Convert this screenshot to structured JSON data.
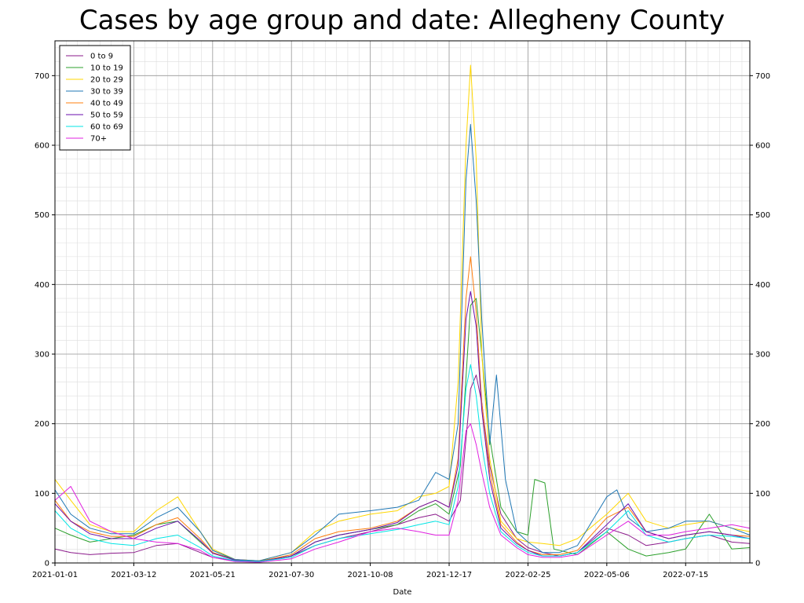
{
  "chart_data": {
    "type": "line",
    "title": "Cases by age group and date: Allegheny County",
    "xlabel": "Date",
    "ylabel": "",
    "x_ticks": [
      "2021-01-01",
      "2021-03-12",
      "2021-05-21",
      "2021-07-30",
      "2021-10-08",
      "2021-12-17",
      "2022-02-25",
      "2022-05-06",
      "2022-07-15"
    ],
    "xlim": [
      "2021-01-01",
      "2022-09-10"
    ],
    "ylim": [
      0,
      750
    ],
    "y_ticks": [
      0,
      100,
      200,
      300,
      400,
      500,
      600,
      700
    ],
    "grid": true,
    "legend_position": "top-left",
    "series": [
      {
        "name": "0 to 9",
        "color": "#8b1a8b",
        "dates": [
          "2021-01-01",
          "2021-01-15",
          "2021-02-01",
          "2021-02-20",
          "2021-03-12",
          "2021-04-01",
          "2021-04-20",
          "2021-05-10",
          "2021-05-21",
          "2021-06-10",
          "2021-07-01",
          "2021-07-30",
          "2021-08-20",
          "2021-09-10",
          "2021-10-08",
          "2021-11-01",
          "2021-11-20",
          "2021-12-05",
          "2021-12-17",
          "2021-12-27",
          "2022-01-05",
          "2022-01-10",
          "2022-01-15",
          "2022-01-22",
          "2022-02-01",
          "2022-02-15",
          "2022-02-25",
          "2022-03-10",
          "2022-03-25",
          "2022-04-10",
          "2022-05-06",
          "2022-05-25",
          "2022-06-10",
          "2022-06-30",
          "2022-07-15",
          "2022-08-05",
          "2022-08-25",
          "2022-09-10"
        ],
        "values": [
          20,
          15,
          12,
          14,
          15,
          25,
          28,
          15,
          8,
          3,
          2,
          10,
          25,
          35,
          45,
          55,
          65,
          70,
          60,
          90,
          250,
          270,
          230,
          140,
          70,
          35,
          22,
          15,
          10,
          15,
          50,
          40,
          25,
          30,
          35,
          40,
          30,
          28
        ]
      },
      {
        "name": "10 to 19",
        "color": "#2ca02c",
        "dates": [
          "2021-01-01",
          "2021-01-15",
          "2021-02-01",
          "2021-02-20",
          "2021-03-12",
          "2021-04-01",
          "2021-04-20",
          "2021-05-10",
          "2021-05-21",
          "2021-06-10",
          "2021-07-01",
          "2021-07-30",
          "2021-08-20",
          "2021-09-10",
          "2021-10-08",
          "2021-11-01",
          "2021-11-20",
          "2021-12-05",
          "2021-12-17",
          "2021-12-27",
          "2022-01-05",
          "2022-01-10",
          "2022-01-15",
          "2022-01-22",
          "2022-02-01",
          "2022-02-15",
          "2022-02-25",
          "2022-03-03",
          "2022-03-12",
          "2022-03-20",
          "2022-04-10",
          "2022-05-06",
          "2022-05-25",
          "2022-06-10",
          "2022-06-30",
          "2022-07-15",
          "2022-08-05",
          "2022-08-25",
          "2022-09-10"
        ],
        "values": [
          50,
          40,
          30,
          35,
          40,
          55,
          60,
          30,
          15,
          5,
          3,
          10,
          30,
          40,
          48,
          55,
          75,
          85,
          70,
          140,
          370,
          380,
          300,
          180,
          80,
          45,
          40,
          120,
          115,
          20,
          12,
          45,
          20,
          10,
          15,
          20,
          70,
          20,
          22
        ]
      },
      {
        "name": "20 to 29",
        "color": "#ffd700",
        "dates": [
          "2021-01-01",
          "2021-01-15",
          "2021-02-01",
          "2021-02-20",
          "2021-03-12",
          "2021-04-01",
          "2021-04-20",
          "2021-05-10",
          "2021-05-21",
          "2021-06-10",
          "2021-07-01",
          "2021-07-30",
          "2021-08-20",
          "2021-09-10",
          "2021-10-08",
          "2021-11-01",
          "2021-11-20",
          "2021-12-05",
          "2021-12-17",
          "2021-12-25",
          "2022-01-01",
          "2022-01-05",
          "2022-01-10",
          "2022-01-15",
          "2022-01-22",
          "2022-02-01",
          "2022-02-15",
          "2022-02-25",
          "2022-03-10",
          "2022-03-25",
          "2022-04-10",
          "2022-05-06",
          "2022-05-25",
          "2022-06-10",
          "2022-06-30",
          "2022-07-15",
          "2022-08-05",
          "2022-08-25",
          "2022-09-10"
        ],
        "values": [
          120,
          90,
          55,
          45,
          45,
          75,
          95,
          45,
          20,
          5,
          3,
          15,
          45,
          60,
          70,
          75,
          95,
          100,
          110,
          260,
          600,
          715,
          580,
          300,
          150,
          60,
          35,
          30,
          28,
          25,
          35,
          70,
          100,
          60,
          50,
          55,
          60,
          50,
          45
        ]
      },
      {
        "name": "30 to 39",
        "color": "#1f77b4",
        "dates": [
          "2021-01-01",
          "2021-01-15",
          "2021-02-01",
          "2021-02-20",
          "2021-03-12",
          "2021-04-01",
          "2021-04-20",
          "2021-05-10",
          "2021-05-21",
          "2021-06-10",
          "2021-07-01",
          "2021-07-30",
          "2021-08-20",
          "2021-09-10",
          "2021-10-08",
          "2021-11-01",
          "2021-11-20",
          "2021-12-05",
          "2021-12-17",
          "2021-12-25",
          "2022-01-01",
          "2022-01-05",
          "2022-01-10",
          "2022-01-15",
          "2022-01-22",
          "2022-01-28",
          "2022-02-05",
          "2022-02-15",
          "2022-02-25",
          "2022-03-10",
          "2022-03-25",
          "2022-04-10",
          "2022-05-06",
          "2022-05-15",
          "2022-05-25",
          "2022-06-10",
          "2022-06-30",
          "2022-07-15",
          "2022-08-05",
          "2022-08-25",
          "2022-09-10"
        ],
        "values": [
          105,
          70,
          50,
          42,
          42,
          65,
          80,
          45,
          18,
          5,
          3,
          15,
          40,
          70,
          75,
          80,
          90,
          130,
          120,
          200,
          550,
          630,
          520,
          350,
          170,
          270,
          120,
          45,
          30,
          15,
          15,
          25,
          95,
          105,
          65,
          45,
          50,
          60,
          60,
          50,
          40
        ]
      },
      {
        "name": "40 to 49",
        "color": "#ff7f0e",
        "dates": [
          "2021-01-01",
          "2021-01-15",
          "2021-02-01",
          "2021-02-20",
          "2021-03-12",
          "2021-04-01",
          "2021-04-20",
          "2021-05-10",
          "2021-05-21",
          "2021-06-10",
          "2021-07-01",
          "2021-07-30",
          "2021-08-20",
          "2021-09-10",
          "2021-10-08",
          "2021-11-01",
          "2021-11-20",
          "2021-12-05",
          "2021-12-17",
          "2021-12-25",
          "2022-01-01",
          "2022-01-05",
          "2022-01-10",
          "2022-01-15",
          "2022-01-22",
          "2022-02-01",
          "2022-02-15",
          "2022-02-25",
          "2022-03-10",
          "2022-03-25",
          "2022-04-10",
          "2022-05-06",
          "2022-05-25",
          "2022-06-10",
          "2022-06-30",
          "2022-07-15",
          "2022-08-05",
          "2022-08-25",
          "2022-09-10"
        ],
        "values": [
          90,
          60,
          45,
          38,
          38,
          55,
          65,
          35,
          15,
          4,
          2,
          12,
          35,
          45,
          50,
          60,
          80,
          90,
          80,
          150,
          380,
          440,
          360,
          230,
          130,
          55,
          30,
          18,
          12,
          12,
          18,
          65,
          80,
          45,
          35,
          40,
          45,
          40,
          38
        ]
      },
      {
        "name": "50 to 59",
        "color": "#6a0dad",
        "dates": [
          "2021-01-01",
          "2021-01-15",
          "2021-02-01",
          "2021-02-20",
          "2021-03-12",
          "2021-04-01",
          "2021-04-20",
          "2021-05-10",
          "2021-05-21",
          "2021-06-10",
          "2021-07-01",
          "2021-07-30",
          "2021-08-20",
          "2021-09-10",
          "2021-10-08",
          "2021-11-01",
          "2021-11-20",
          "2021-12-05",
          "2021-12-17",
          "2021-12-25",
          "2022-01-01",
          "2022-01-05",
          "2022-01-10",
          "2022-01-15",
          "2022-01-22",
          "2022-02-01",
          "2022-02-15",
          "2022-02-25",
          "2022-03-10",
          "2022-03-25",
          "2022-04-10",
          "2022-05-06",
          "2022-05-25",
          "2022-06-10",
          "2022-06-30",
          "2022-07-15",
          "2022-08-05",
          "2022-08-25",
          "2022-09-10"
        ],
        "values": [
          85,
          60,
          42,
          35,
          35,
          50,
          60,
          32,
          14,
          4,
          2,
          10,
          30,
          40,
          48,
          58,
          80,
          90,
          80,
          140,
          350,
          390,
          340,
          220,
          120,
          50,
          28,
          18,
          10,
          10,
          15,
          55,
          85,
          45,
          35,
          40,
          45,
          40,
          35
        ]
      },
      {
        "name": "60 to 69",
        "color": "#00e5e5",
        "dates": [
          "2021-01-01",
          "2021-01-15",
          "2021-02-01",
          "2021-02-20",
          "2021-03-12",
          "2021-04-01",
          "2021-04-20",
          "2021-05-10",
          "2021-05-21",
          "2021-06-10",
          "2021-07-01",
          "2021-07-30",
          "2021-08-20",
          "2021-09-10",
          "2021-10-08",
          "2021-11-01",
          "2021-11-20",
          "2021-12-05",
          "2021-12-17",
          "2021-12-25",
          "2022-01-01",
          "2022-01-05",
          "2022-01-10",
          "2022-01-15",
          "2022-01-22",
          "2022-02-01",
          "2022-02-15",
          "2022-02-25",
          "2022-03-10",
          "2022-03-25",
          "2022-04-10",
          "2022-05-06",
          "2022-05-25",
          "2022-06-10",
          "2022-06-30",
          "2022-07-15",
          "2022-08-05",
          "2022-08-25",
          "2022-09-10"
        ],
        "values": [
          75,
          50,
          35,
          28,
          25,
          35,
          40,
          22,
          10,
          3,
          2,
          8,
          25,
          35,
          42,
          48,
          55,
          60,
          55,
          110,
          250,
          285,
          240,
          170,
          100,
          45,
          25,
          15,
          10,
          10,
          15,
          45,
          75,
          40,
          30,
          35,
          40,
          38,
          35
        ]
      },
      {
        "name": "70+",
        "color": "#e020e0",
        "dates": [
          "2021-01-01",
          "2021-01-15",
          "2021-02-01",
          "2021-02-20",
          "2021-03-12",
          "2021-04-01",
          "2021-04-20",
          "2021-05-10",
          "2021-05-21",
          "2021-06-10",
          "2021-07-01",
          "2021-07-30",
          "2021-08-20",
          "2021-09-10",
          "2021-10-08",
          "2021-11-01",
          "2021-11-20",
          "2021-12-05",
          "2021-12-17",
          "2021-12-25",
          "2022-01-01",
          "2022-01-05",
          "2022-01-10",
          "2022-01-15",
          "2022-01-22",
          "2022-02-01",
          "2022-02-15",
          "2022-02-25",
          "2022-03-10",
          "2022-03-25",
          "2022-04-10",
          "2022-05-06",
          "2022-05-25",
          "2022-06-10",
          "2022-06-30",
          "2022-07-15",
          "2022-08-05",
          "2022-08-25",
          "2022-09-10"
        ],
        "values": [
          90,
          110,
          60,
          45,
          35,
          30,
          28,
          18,
          8,
          2,
          1,
          6,
          20,
          30,
          45,
          50,
          45,
          40,
          40,
          90,
          190,
          200,
          170,
          130,
          80,
          40,
          22,
          12,
          8,
          8,
          12,
          40,
          60,
          40,
          40,
          45,
          50,
          55,
          50
        ]
      }
    ]
  }
}
